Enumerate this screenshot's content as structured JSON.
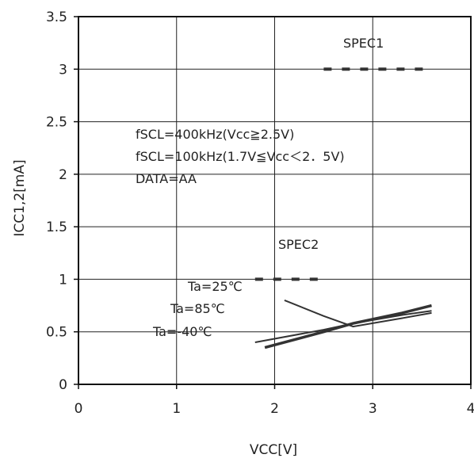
{
  "chart_data": {
    "type": "line",
    "xlabel": "VCC[V]",
    "ylabel": "ICC1,2[mA]",
    "xlim": [
      0,
      4
    ],
    "ylim": [
      0,
      3.5
    ],
    "xticks": [
      "0",
      "1",
      "2",
      "3",
      "4"
    ],
    "yticks": [
      "0",
      "0.5",
      "1",
      "1.5",
      "2",
      "2.5",
      "3",
      "3.5"
    ],
    "grid": true,
    "annotations": [
      {
        "text": "fSCL=400kHz(Vcc≧2.5V)"
      },
      {
        "text": "fSCL=100kHz(1.7V≦Vcc＜2．5V)"
      },
      {
        "text": "DATA=AA"
      }
    ],
    "series": [
      {
        "name": "SPEC1",
        "style": "dashed",
        "x": [
          2.5,
          3.6
        ],
        "y": [
          3.0,
          3.0
        ]
      },
      {
        "name": "SPEC2",
        "style": "dashed",
        "x": [
          1.8,
          2.5
        ],
        "y": [
          1.0,
          1.0
        ]
      },
      {
        "name": "Ta=25℃",
        "style": "solid",
        "x": [
          1.8,
          2.5,
          2.8,
          3.3,
          3.6
        ],
        "y": [
          0.4,
          0.52,
          0.58,
          0.66,
          0.7
        ]
      },
      {
        "name": "Ta=85℃",
        "style": "solid",
        "x": [
          1.9,
          2.5,
          2.8,
          3.3,
          3.6
        ],
        "y": [
          0.35,
          0.5,
          0.58,
          0.68,
          0.75
        ]
      },
      {
        "name": "Ta=-40℃",
        "style": "solid",
        "x": [
          2.1,
          2.5,
          2.8,
          3.3,
          3.6
        ],
        "y": [
          0.8,
          0.65,
          0.55,
          0.63,
          0.68
        ]
      }
    ]
  }
}
